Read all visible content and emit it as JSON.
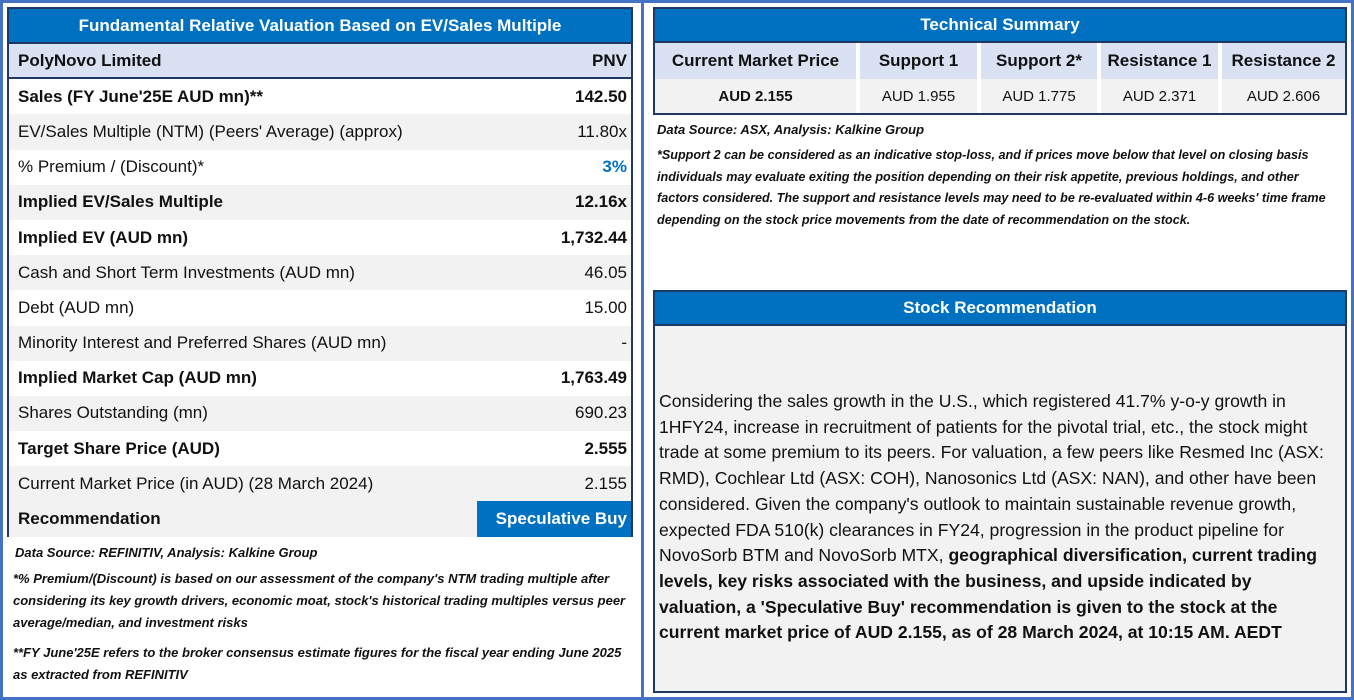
{
  "valuation": {
    "title": "Fundamental Relative Valuation Based on EV/Sales Multiple",
    "company": {
      "name": "PolyNovo Limited",
      "ticker": "PNV"
    },
    "rows": [
      {
        "label": "Sales (FY June'25E AUD mn)**",
        "value": "142.50",
        "bold": true
      },
      {
        "label": "EV/Sales Multiple (NTM)  (Peers' Average) (approx)",
        "value": "11.80x",
        "bold": false
      },
      {
        "label": "% Premium / (Discount)*",
        "value": "3%",
        "bold": false,
        "value_color": "#0070c0"
      },
      {
        "label": "Implied EV/Sales Multiple",
        "value": "12.16x",
        "bold": true
      },
      {
        "label": "Implied EV (AUD mn)",
        "value": "1,732.44",
        "bold": true
      },
      {
        "label": "Cash and Short Term Investments (AUD mn)",
        "value": "46.05",
        "bold": false
      },
      {
        "label": "Debt (AUD mn)",
        "value": "15.00",
        "bold": false
      },
      {
        "label": "Minority Interest and Preferred Shares (AUD mn)",
        "value": "-",
        "bold": false
      },
      {
        "label": "Implied Market Cap (AUD mn)",
        "value": "1,763.49",
        "bold": true
      },
      {
        "label": "Shares Outstanding (mn)",
        "value": "690.23",
        "bold": false
      },
      {
        "label": "Target Share Price (AUD)",
        "value": "2.555",
        "bold": true
      },
      {
        "label": "Current Market Price (in AUD) (28 March 2024)",
        "value": "2.155",
        "bold": false
      }
    ],
    "recommendation": {
      "label": "Recommendation",
      "value": "Speculative Buy"
    },
    "source": "Data Source: REFINITIV, Analysis: Kalkine Group",
    "note1": "*% Premium/(Discount) is based on our assessment of the company's NTM trading multiple after considering its key growth drivers, economic moat, stock's historical trading multiples versus peer average/median, and investment risks",
    "note2": "**FY June'25E refers to the broker consensus estimate figures for the fiscal year ending June 2025  as extracted from REFINITIV"
  },
  "technical": {
    "title": "Technical Summary",
    "columns": [
      "Current Market Price",
      "Support 1",
      "Support 2*",
      "Resistance 1",
      "Resistance 2"
    ],
    "values": [
      "AUD 2.155",
      "AUD 1.955",
      "AUD 1.775",
      "AUD 2.371",
      "AUD 2.606"
    ],
    "source": "Data Source: ASX, Analysis: Kalkine Group",
    "note": "*Support 2 can be considered as an indicative stop-loss, and if prices move below that level on closing basis individuals may evaluate exiting the position depending on their risk appetite, previous holdings, and other factors considered. The support and resistance levels may need to be re-evaluated within 4-6 weeks' time frame depending on the stock price movements from the date of recommendation on the stock."
  },
  "recommendation_box": {
    "title": "Stock Recommendation",
    "text_regular": "Considering the sales growth in the U.S., which registered 41.7% y-o-y growth in 1HFY24, increase in recruitment of patients for the pivotal trial, etc., the stock might trade at some premium to its peers. For valuation, a few peers like Resmed Inc (ASX: RMD), Cochlear Ltd (ASX: COH), Nanosonics Ltd (ASX: NAN), and other have been considered. Given the company's outlook to maintain sustainable revenue growth, expected FDA 510(k) clearances in FY24, progression in the product pipeline for NovoSorb BTM and NovoSorb MTX, ",
    "text_bold": "geographical diversification, current trading levels, key risks associated with the business, and upside indicated by valuation, a 'Speculative Buy' recommendation is given to the stock at the current market price of AUD 2.155,  as of 28 March 2024, at 10:15 AM. AEDT"
  },
  "colors": {
    "header_blue": "#0070c0",
    "border_navy": "#1f3864",
    "frame_blue": "#4472c4",
    "light_blue": "#d9e1f2",
    "light_grey": "#f2f2f2"
  }
}
